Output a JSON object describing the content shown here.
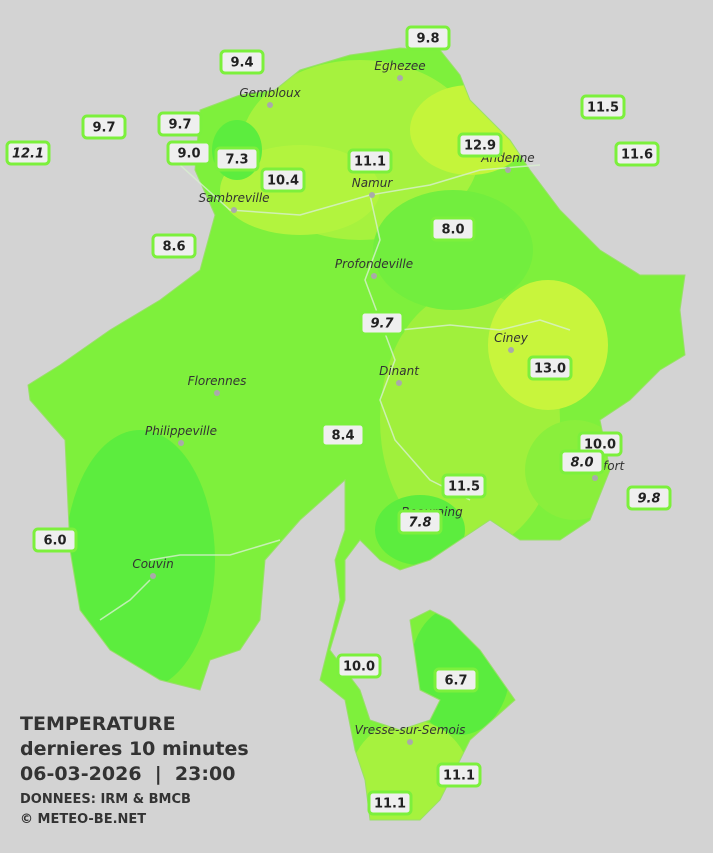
{
  "map": {
    "towns": [
      "Eghezee",
      "Gembloux",
      "Andenne",
      "Namur",
      "Sambreville",
      "Profondeville",
      "Ciney",
      "Dinant",
      "Florennes",
      "Philippeville",
      "Rochefort",
      "Beauraing",
      "Couvin",
      "Vresse-sur-Semois"
    ],
    "stations": [
      "9.8",
      "9.4",
      "11.5",
      "9.7",
      "9.7",
      "12.1",
      "9.0",
      "7.3",
      "12.9",
      "11.6",
      "11.1",
      "10.4",
      "8.0",
      "8.6",
      "9.7",
      "13.0",
      "8.4",
      "10.0",
      "8.0",
      "11.5",
      "9.8",
      "7.8",
      "6.0",
      "10.0",
      "6.7",
      "11.1",
      "11.1"
    ]
  },
  "legend": {
    "title": "TEMPERATURE",
    "subtitle": "dernieres 10 minutes",
    "datetime": "06-03-2026  |  23:00",
    "source": "DONNEES: IRM & BMCB",
    "copyright": "© METEO-BE.NET"
  }
}
